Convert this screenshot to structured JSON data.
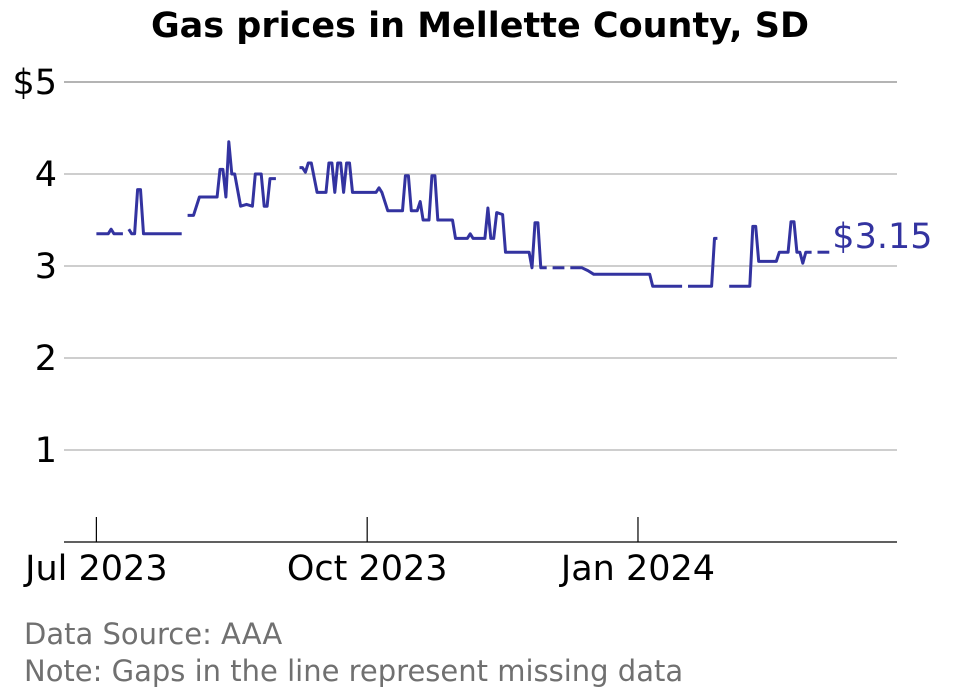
{
  "chart_data": {
    "type": "line",
    "title": "Gas prices in Mellette County, SD",
    "xlabel": "",
    "ylabel": "",
    "ylim": [
      0,
      5
    ],
    "y_ticks": [
      {
        "value": 5,
        "label": "$5"
      },
      {
        "value": 4,
        "label": "4"
      },
      {
        "value": 3,
        "label": "3"
      },
      {
        "value": 2,
        "label": "2"
      },
      {
        "value": 1,
        "label": "1"
      }
    ],
    "x_ticks": [
      {
        "date": "2023-07-01",
        "label": "Jul 2023"
      },
      {
        "date": "2023-10-01",
        "label": "Oct 2023"
      },
      {
        "date": "2024-01-01",
        "label": "Jan 2024"
      }
    ],
    "xlim": [
      "2023-06-20",
      "2024-03-29"
    ],
    "grid": "horizontal",
    "colors": {
      "line": "#3333a0",
      "grid": "#b0b0b0",
      "axis": "#000000"
    },
    "end_label": "$3.15",
    "series": [
      {
        "segments": [
          [
            [
              "2023-07-01",
              3.35
            ],
            [
              "2023-07-05",
              3.35
            ],
            [
              "2023-07-06",
              3.4
            ],
            [
              "2023-07-07",
              3.35
            ],
            [
              "2023-07-10",
              3.35
            ]
          ],
          [
            [
              "2023-07-12",
              3.4
            ],
            [
              "2023-07-13",
              3.35
            ],
            [
              "2023-07-14",
              3.35
            ],
            [
              "2023-07-15",
              3.83
            ],
            [
              "2023-07-16",
              3.83
            ],
            [
              "2023-07-17",
              3.35
            ],
            [
              "2023-07-30",
              3.35
            ]
          ],
          [
            [
              "2023-08-01",
              3.55
            ],
            [
              "2023-08-03",
              3.55
            ],
            [
              "2023-08-05",
              3.75
            ],
            [
              "2023-08-11",
              3.75
            ],
            [
              "2023-08-12",
              4.05
            ],
            [
              "2023-08-13",
              4.05
            ],
            [
              "2023-08-14",
              3.75
            ],
            [
              "2023-08-15",
              4.35
            ],
            [
              "2023-08-16",
              4.0
            ],
            [
              "2023-08-17",
              4.0
            ],
            [
              "2023-08-19",
              3.65
            ],
            [
              "2023-08-21",
              3.67
            ],
            [
              "2023-08-23",
              3.65
            ],
            [
              "2023-08-24",
              4.0
            ],
            [
              "2023-08-26",
              4.0
            ],
            [
              "2023-08-27",
              3.65
            ],
            [
              "2023-08-28",
              3.65
            ],
            [
              "2023-08-29",
              3.95
            ],
            [
              "2023-08-31",
              3.95
            ]
          ],
          [
            [
              "2023-09-08",
              4.07
            ],
            [
              "2023-09-09",
              4.07
            ],
            [
              "2023-09-10",
              4.02
            ],
            [
              "2023-09-11",
              4.12
            ],
            [
              "2023-09-12",
              4.12
            ],
            [
              "2023-09-14",
              3.8
            ],
            [
              "2023-09-17",
              3.8
            ],
            [
              "2023-09-18",
              4.12
            ],
            [
              "2023-09-19",
              4.12
            ],
            [
              "2023-09-20",
              3.8
            ],
            [
              "2023-09-21",
              4.12
            ],
            [
              "2023-09-22",
              4.12
            ],
            [
              "2023-09-23",
              3.8
            ],
            [
              "2023-09-24",
              4.12
            ],
            [
              "2023-09-25",
              4.12
            ],
            [
              "2023-09-26",
              3.8
            ],
            [
              "2023-10-04",
              3.8
            ],
            [
              "2023-10-05",
              3.85
            ],
            [
              "2023-10-06",
              3.8
            ],
            [
              "2023-10-08",
              3.6
            ],
            [
              "2023-10-13",
              3.6
            ],
            [
              "2023-10-14",
              3.98
            ],
            [
              "2023-10-15",
              3.98
            ],
            [
              "2023-10-16",
              3.6
            ],
            [
              "2023-10-18",
              3.6
            ],
            [
              "2023-10-19",
              3.7
            ],
            [
              "2023-10-20",
              3.5
            ],
            [
              "2023-10-22",
              3.5
            ],
            [
              "2023-10-23",
              3.98
            ],
            [
              "2023-10-24",
              3.98
            ],
            [
              "2023-10-25",
              3.5
            ],
            [
              "2023-10-30",
              3.5
            ],
            [
              "2023-10-31",
              3.3
            ],
            [
              "2023-11-04",
              3.3
            ],
            [
              "2023-11-05",
              3.35
            ],
            [
              "2023-11-06",
              3.3
            ],
            [
              "2023-11-10",
              3.3
            ],
            [
              "2023-11-11",
              3.63
            ],
            [
              "2023-11-12",
              3.3
            ],
            [
              "2023-11-13",
              3.3
            ],
            [
              "2023-11-14",
              3.58
            ],
            [
              "2023-11-16",
              3.56
            ],
            [
              "2023-11-17",
              3.15
            ],
            [
              "2023-11-25",
              3.15
            ],
            [
              "2023-11-26",
              2.98
            ],
            [
              "2023-11-27",
              3.47
            ],
            [
              "2023-11-28",
              3.47
            ],
            [
              "2023-11-29",
              2.98
            ],
            [
              "2023-12-01",
              2.98
            ]
          ],
          [
            [
              "2023-12-03",
              2.98
            ],
            [
              "2023-12-07",
              2.98
            ]
          ],
          [
            [
              "2023-12-09",
              2.98
            ],
            [
              "2023-12-13",
              2.98
            ],
            [
              "2023-12-15",
              2.95
            ],
            [
              "2023-12-17",
              2.91
            ],
            [
              "2024-01-05",
              2.91
            ],
            [
              "2024-01-06",
              2.78
            ],
            [
              "2024-01-16",
              2.78
            ]
          ],
          [
            [
              "2024-01-18",
              2.78
            ],
            [
              "2024-01-26",
              2.78
            ],
            [
              "2024-01-27",
              3.3
            ],
            [
              "2024-01-28",
              3.3
            ]
          ],
          [
            [
              "2024-02-01",
              2.78
            ],
            [
              "2024-02-08",
              2.78
            ],
            [
              "2024-02-09",
              3.43
            ],
            [
              "2024-02-10",
              3.43
            ],
            [
              "2024-02-11",
              3.05
            ],
            [
              "2024-02-17",
              3.05
            ],
            [
              "2024-02-18",
              3.15
            ],
            [
              "2024-02-21",
              3.15
            ],
            [
              "2024-02-22",
              3.48
            ],
            [
              "2024-02-23",
              3.48
            ],
            [
              "2024-02-24",
              3.15
            ],
            [
              "2024-02-25",
              3.15
            ],
            [
              "2024-02-26",
              3.03
            ],
            [
              "2024-02-27",
              3.15
            ],
            [
              "2024-02-29",
              3.15
            ]
          ],
          [
            [
              "2024-03-02",
              3.15
            ],
            [
              "2024-03-06",
              3.15
            ]
          ]
        ]
      }
    ]
  },
  "footer": {
    "source": "Data Source: AAA",
    "note": "Note: Gaps in the line represent missing data"
  }
}
